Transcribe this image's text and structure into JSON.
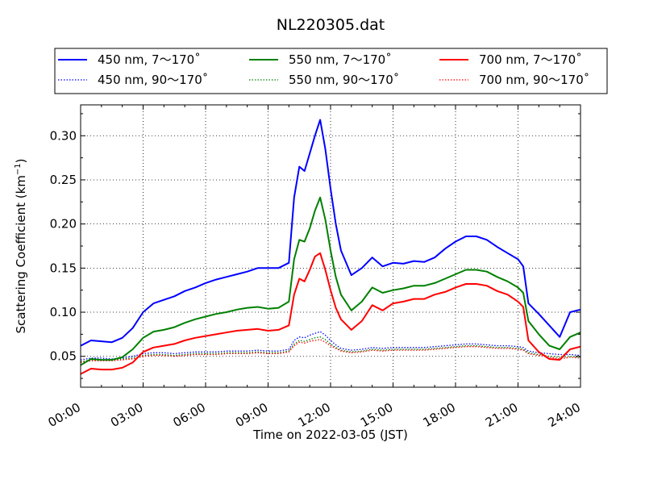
{
  "chart_data": {
    "type": "line",
    "title": "NL220305.dat",
    "xlabel": "Time on 2022-03-05 (JST)",
    "ylabel_main": "Scattering Coefficient (km",
    "ylabel_sup": "−1",
    "ylabel_tail": ")",
    "x_unit": "hours",
    "xlim": [
      0,
      24
    ],
    "ylim": [
      0.015,
      0.335
    ],
    "x_ticks": [
      {
        "value": 0,
        "label": "00:00"
      },
      {
        "value": 3,
        "label": "03:00"
      },
      {
        "value": 6,
        "label": "06:00"
      },
      {
        "value": 9,
        "label": "09:00"
      },
      {
        "value": 12,
        "label": "12:00"
      },
      {
        "value": 15,
        "label": "15:00"
      },
      {
        "value": 18,
        "label": "18:00"
      },
      {
        "value": 21,
        "label": "21:00"
      },
      {
        "value": 24,
        "label": "24:00"
      }
    ],
    "y_ticks": [
      {
        "value": 0.05,
        "label": "0.05"
      },
      {
        "value": 0.1,
        "label": "0.10"
      },
      {
        "value": 0.15,
        "label": "0.15"
      },
      {
        "value": 0.2,
        "label": "0.20"
      },
      {
        "value": 0.25,
        "label": "0.25"
      },
      {
        "value": 0.3,
        "label": "0.30"
      }
    ],
    "grid": true,
    "legend_position": "top-outside",
    "x": [
      0,
      0.5,
      1,
      1.5,
      2,
      2.5,
      3,
      3.5,
      4,
      4.5,
      5,
      5.5,
      6,
      6.5,
      7,
      7.5,
      8,
      8.5,
      9,
      9.5,
      10,
      10.25,
      10.5,
      10.75,
      11,
      11.25,
      11.5,
      11.75,
      12,
      12.25,
      12.5,
      13,
      13.5,
      14,
      14.5,
      15,
      15.5,
      16,
      16.5,
      17,
      17.5,
      18,
      18.5,
      19,
      19.5,
      20,
      20.5,
      21,
      21.25,
      21.5,
      22,
      22.5,
      23,
      23.5,
      24
    ],
    "series": [
      {
        "name": "450 nm, 7～170˚",
        "color": "#0000ff",
        "style": "solid",
        "values": [
          0.062,
          0.068,
          0.067,
          0.066,
          0.071,
          0.082,
          0.1,
          0.11,
          0.114,
          0.118,
          0.124,
          0.128,
          0.133,
          0.137,
          0.14,
          0.143,
          0.146,
          0.15,
          0.15,
          0.15,
          0.156,
          0.23,
          0.265,
          0.26,
          0.28,
          0.3,
          0.318,
          0.285,
          0.24,
          0.2,
          0.17,
          0.142,
          0.15,
          0.162,
          0.152,
          0.156,
          0.155,
          0.158,
          0.157,
          0.162,
          0.172,
          0.18,
          0.186,
          0.186,
          0.182,
          0.174,
          0.167,
          0.16,
          0.152,
          0.11,
          0.098,
          0.085,
          0.072,
          0.1,
          0.103
        ]
      },
      {
        "name": "550 nm, 7～170˚",
        "color": "#008000",
        "style": "solid",
        "values": [
          0.04,
          0.047,
          0.046,
          0.046,
          0.049,
          0.058,
          0.071,
          0.078,
          0.08,
          0.083,
          0.088,
          0.092,
          0.095,
          0.098,
          0.1,
          0.103,
          0.105,
          0.106,
          0.104,
          0.105,
          0.112,
          0.16,
          0.182,
          0.18,
          0.195,
          0.215,
          0.23,
          0.205,
          0.17,
          0.14,
          0.12,
          0.102,
          0.112,
          0.128,
          0.122,
          0.125,
          0.127,
          0.13,
          0.13,
          0.133,
          0.138,
          0.143,
          0.148,
          0.148,
          0.146,
          0.14,
          0.135,
          0.128,
          0.122,
          0.09,
          0.075,
          0.062,
          0.058,
          0.072,
          0.077
        ]
      },
      {
        "name": "700 nm, 7～170˚",
        "color": "#ff0000",
        "style": "solid",
        "values": [
          0.03,
          0.036,
          0.035,
          0.035,
          0.037,
          0.043,
          0.055,
          0.06,
          0.062,
          0.064,
          0.068,
          0.071,
          0.073,
          0.075,
          0.077,
          0.079,
          0.08,
          0.081,
          0.079,
          0.08,
          0.085,
          0.12,
          0.138,
          0.135,
          0.148,
          0.163,
          0.167,
          0.148,
          0.125,
          0.105,
          0.092,
          0.08,
          0.09,
          0.108,
          0.102,
          0.11,
          0.112,
          0.115,
          0.115,
          0.12,
          0.123,
          0.128,
          0.132,
          0.132,
          0.13,
          0.124,
          0.12,
          0.112,
          0.106,
          0.068,
          0.055,
          0.047,
          0.046,
          0.058,
          0.061
        ]
      },
      {
        "name": "450 nm, 90～170˚",
        "color": "#0000ff",
        "style": "dotted",
        "values": [
          0.046,
          0.048,
          0.048,
          0.047,
          0.048,
          0.05,
          0.053,
          0.054,
          0.054,
          0.053,
          0.054,
          0.055,
          0.055,
          0.055,
          0.056,
          0.056,
          0.056,
          0.057,
          0.056,
          0.056,
          0.058,
          0.068,
          0.072,
          0.071,
          0.074,
          0.076,
          0.078,
          0.074,
          0.068,
          0.063,
          0.059,
          0.057,
          0.058,
          0.06,
          0.059,
          0.06,
          0.06,
          0.06,
          0.06,
          0.061,
          0.062,
          0.063,
          0.064,
          0.064,
          0.063,
          0.062,
          0.062,
          0.061,
          0.06,
          0.056,
          0.054,
          0.053,
          0.052,
          0.052,
          0.051
        ]
      },
      {
        "name": "550 nm, 90～170˚",
        "color": "#008000",
        "style": "dotted",
        "values": [
          0.044,
          0.046,
          0.046,
          0.046,
          0.047,
          0.048,
          0.051,
          0.052,
          0.052,
          0.051,
          0.052,
          0.053,
          0.053,
          0.053,
          0.054,
          0.054,
          0.054,
          0.055,
          0.054,
          0.054,
          0.056,
          0.064,
          0.068,
          0.067,
          0.069,
          0.071,
          0.072,
          0.069,
          0.064,
          0.06,
          0.057,
          0.055,
          0.056,
          0.058,
          0.057,
          0.058,
          0.058,
          0.058,
          0.058,
          0.059,
          0.06,
          0.061,
          0.062,
          0.062,
          0.061,
          0.06,
          0.06,
          0.059,
          0.058,
          0.054,
          0.052,
          0.05,
          0.049,
          0.05,
          0.049
        ]
      },
      {
        "name": "700 nm, 90～170˚",
        "color": "#ff0000",
        "style": "dotted",
        "values": [
          0.043,
          0.045,
          0.045,
          0.045,
          0.046,
          0.047,
          0.05,
          0.051,
          0.051,
          0.05,
          0.051,
          0.052,
          0.052,
          0.052,
          0.053,
          0.053,
          0.053,
          0.054,
          0.053,
          0.053,
          0.055,
          0.062,
          0.066,
          0.065,
          0.067,
          0.068,
          0.069,
          0.066,
          0.062,
          0.059,
          0.056,
          0.054,
          0.055,
          0.057,
          0.056,
          0.057,
          0.057,
          0.057,
          0.057,
          0.058,
          0.059,
          0.06,
          0.061,
          0.061,
          0.06,
          0.059,
          0.059,
          0.058,
          0.057,
          0.053,
          0.051,
          0.049,
          0.047,
          0.049,
          0.048
        ]
      }
    ]
  }
}
